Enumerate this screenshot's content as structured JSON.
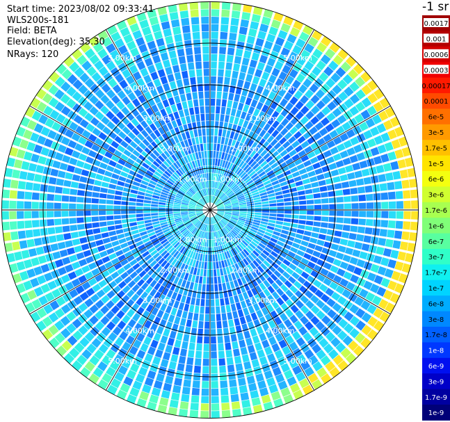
{
  "header": {
    "start_time": "Start time: 2023/08/02 09:33:41",
    "instrument": "WLS200s-181",
    "field": "Field: BETA",
    "elevation": "Elevation(deg): 35.30",
    "nrays": "NRays: 120"
  },
  "colorbar": {
    "unit_label": "-1 sr",
    "ticks": [
      {
        "label": "0.0017",
        "color": "#a00000"
      },
      {
        "label": "0.001",
        "color": "#b40000"
      },
      {
        "label": "0.0006",
        "color": "#d40000"
      },
      {
        "label": "0.0003",
        "color": "#f00000"
      },
      {
        "label": "0.00017",
        "color": "#ff1a00"
      },
      {
        "label": "0.0001",
        "color": "#ff4a00"
      },
      {
        "label": "6e-5",
        "color": "#ff7000"
      },
      {
        "label": "3e-5",
        "color": "#ff9a00"
      },
      {
        "label": "1.7e-5",
        "color": "#ffc000"
      },
      {
        "label": "1e-5",
        "color": "#ffe400"
      },
      {
        "label": "6e-6",
        "color": "#f4ff10"
      },
      {
        "label": "3e-6",
        "color": "#d0ff30"
      },
      {
        "label": "1.7e-6",
        "color": "#a8ff50"
      },
      {
        "label": "1e-6",
        "color": "#80ff78"
      },
      {
        "label": "6e-7",
        "color": "#58ffa0"
      },
      {
        "label": "3e-7",
        "color": "#30ffc8"
      },
      {
        "label": "1.7e-7",
        "color": "#10f0f0"
      },
      {
        "label": "1e-7",
        "color": "#00d4ff"
      },
      {
        "label": "6e-8",
        "color": "#00acff"
      },
      {
        "label": "3e-8",
        "color": "#0088ff"
      },
      {
        "label": "1.7e-8",
        "color": "#0060ff"
      },
      {
        "label": "1e-8",
        "color": "#0038ff"
      },
      {
        "label": "6e-9",
        "color": "#0010f0"
      },
      {
        "label": "3e-9",
        "color": "#0000c8"
      },
      {
        "label": "1.7e-9",
        "color": "#0000a0"
      },
      {
        "label": "1e-9",
        "color": "#000078"
      }
    ]
  },
  "chart_data": {
    "type": "heatmap",
    "projection": "polar PPI",
    "field": "BETA",
    "elevation_deg": 35.3,
    "nrays": 120,
    "range_rings_km": [
      1.0,
      2.0,
      3.0,
      4.0,
      5.0
    ],
    "ring_labels": [
      "1.00km",
      "2.00km",
      "3.00km",
      "4.00km",
      "5.00km"
    ],
    "spoke_angles_deg": [
      0,
      30,
      60,
      90,
      120,
      150,
      180,
      210,
      240,
      270,
      300,
      330
    ],
    "max_range_km": 5.0,
    "value_range": [
      1e-09,
      0.0017
    ],
    "dominant_values": "mostly 1e-7 to 1e-8 (cyan-blue); higher 1e-6 to 1e-5 (green-yellow) near the outer edge on the east side"
  }
}
